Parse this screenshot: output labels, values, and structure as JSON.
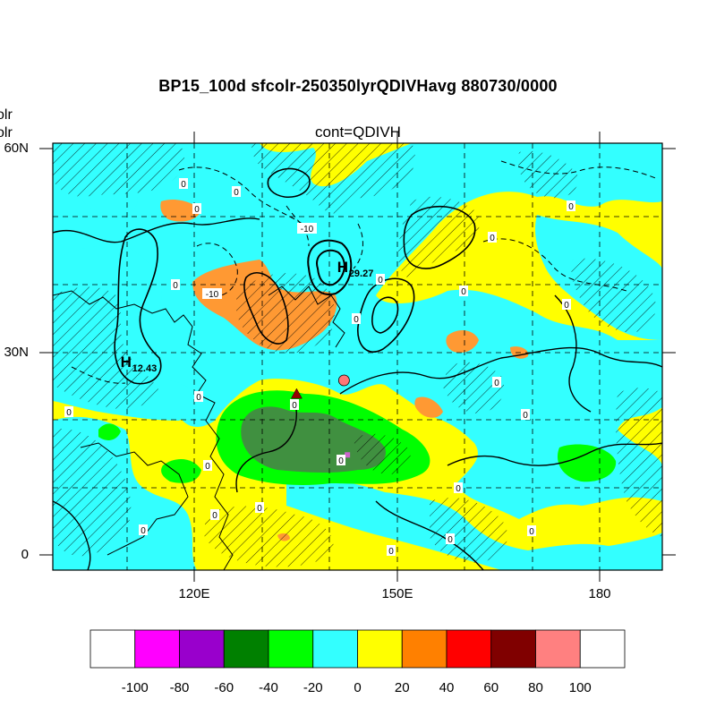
{
  "title": "BP15_100d sfcolr-250350lyrQDIVHavg  880730/0000",
  "subtitle": "cont=QDIVH",
  "left_fragments": [
    "olr",
    "olr"
  ],
  "chart_data": {
    "type": "heatmap",
    "title": "BP15_100d sfcolr-250350lyrQDIVHavg  880730/0000",
    "subtitle": "cont=QDIVH",
    "lon_range": [
      100,
      190
    ],
    "lat_range": [
      -2,
      61
    ],
    "x_ticks": [
      {
        "value": 120,
        "label": "120E"
      },
      {
        "value": 150,
        "label": "150E"
      },
      {
        "value": 180,
        "label": "180"
      }
    ],
    "y_ticks": [
      {
        "value": 0,
        "label": "0"
      },
      {
        "value": 30,
        "label": "30N"
      },
      {
        "value": 60,
        "label": "60N"
      }
    ],
    "grid": true,
    "colorbar": {
      "labels": [
        "-100",
        "-80",
        "-60",
        "-40",
        "-20",
        "0",
        "20",
        "40",
        "60",
        "80",
        "100"
      ],
      "colors": [
        "#ffffff",
        "#ff00ff",
        "#9900cc",
        "#008000",
        "#00ff00",
        "#33ffff",
        "#ffff00",
        "#ff8000",
        "#ff0000",
        "#800000",
        "#ff8080",
        "#ffffff"
      ]
    },
    "highs": [
      {
        "symbol": "H",
        "value": "29.27",
        "lon": 142,
        "lat": 42
      },
      {
        "symbol": "H",
        "value": "12.43",
        "lon": 110,
        "lat": 28
      }
    ],
    "contour_labels": [
      "0",
      "-10",
      "-10"
    ],
    "markers": [
      {
        "type": "triangle",
        "color": "#990000",
        "lon": 136,
        "lat": 24
      },
      {
        "type": "circle",
        "color": "#ff7777",
        "lon": 143,
        "lat": 26
      },
      {
        "type": "square",
        "color": "#cc66cc",
        "lon": 143.5,
        "lat": 15
      }
    ]
  }
}
